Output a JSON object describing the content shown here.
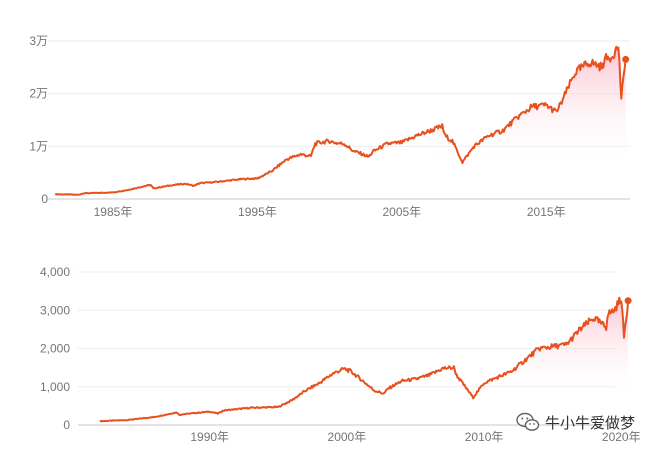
{
  "colors": {
    "line": "#e8501e",
    "fill_top": "#f7a4b8",
    "grid": "#eeeeee",
    "tick_text": "#757575"
  },
  "chart_data": [
    {
      "type": "area",
      "title": "",
      "xlabel": "",
      "ylabel": "",
      "x_ticks": [
        "1985年",
        "1995年",
        "2005年",
        "2015年"
      ],
      "x_tick_values": [
        1985,
        1995,
        2005,
        2015
      ],
      "y_ticks": [
        "0",
        "1万",
        "2万",
        "3万"
      ],
      "y_tick_values": [
        0,
        10000,
        20000,
        30000
      ],
      "ylim": [
        0,
        30000
      ],
      "xlim": [
        1980.5,
        2020.8
      ],
      "grid": true,
      "series": [
        {
          "x": [
            1981,
            1982,
            1982.6,
            1983,
            1984,
            1985,
            1986,
            1987.6,
            1987.8,
            1988,
            1989,
            1990,
            1990.6,
            1991,
            1992,
            1993,
            1994,
            1995,
            1996,
            1997,
            1998,
            1998.7,
            1999,
            1999.5,
            2000,
            2000.5,
            2001,
            2001.7,
            2002,
            2002.7,
            2003,
            2004,
            2005,
            2006,
            2007,
            2007.8,
            2008,
            2008.5,
            2009.2,
            2010,
            2011,
            2012,
            2013,
            2014,
            2015,
            2015.7,
            2016,
            2017,
            2018,
            2018.9,
            2019,
            2019.5,
            2020,
            2020.2,
            2020.5
          ],
          "y": [
            900,
            850,
            800,
            1100,
            1150,
            1250,
            1700,
            2700,
            2000,
            2100,
            2600,
            2900,
            2500,
            3000,
            3200,
            3500,
            3800,
            3900,
            5300,
            7500,
            8500,
            8100,
            10500,
            10800,
            11000,
            10600,
            10500,
            9000,
            8800,
            8000,
            9000,
            10500,
            10700,
            12000,
            13000,
            13800,
            12000,
            11000,
            7000,
            10000,
            12000,
            13000,
            15500,
            17500,
            17800,
            16500,
            18000,
            24000,
            26000,
            25000,
            26500,
            27000,
            29000,
            19000,
            26500
          ]
        }
      ]
    },
    {
      "type": "area",
      "title": "",
      "xlabel": "",
      "ylabel": "",
      "x_ticks": [
        "1990年",
        "2000年",
        "2010年",
        "2020年"
      ],
      "x_tick_values": [
        1990,
        2000,
        2010,
        2020
      ],
      "y_ticks": [
        "0",
        "1,000",
        "2,000",
        "3,000",
        "4,000"
      ],
      "y_tick_values": [
        0,
        1000,
        2000,
        3000,
        4000
      ],
      "ylim": [
        0,
        4000
      ],
      "xlim": [
        1980.4,
        2020.2
      ],
      "grid": true,
      "series": [
        {
          "x": [
            1982,
            1984,
            1986,
            1987.6,
            1987.8,
            1988,
            1990,
            1990.6,
            1991,
            1993,
            1995,
            1996,
            1997,
            1998,
            1999,
            1999.8,
            2000.3,
            2001,
            2002,
            2002.7,
            2003,
            2004,
            2005,
            2006,
            2007,
            2007.8,
            2008,
            2009.2,
            2010,
            2011,
            2012,
            2013,
            2014,
            2015,
            2016,
            2017,
            2018,
            2018.9,
            2019,
            2019.5,
            2020,
            2020.2,
            2020.5
          ],
          "y": [
            100,
            130,
            210,
            330,
            260,
            280,
            350,
            300,
            380,
            450,
            470,
            650,
            900,
            1100,
            1350,
            1470,
            1400,
            1200,
            900,
            820,
            950,
            1150,
            1200,
            1300,
            1480,
            1500,
            1300,
            720,
            1100,
            1250,
            1400,
            1700,
            2000,
            2050,
            2100,
            2500,
            2800,
            2550,
            2900,
            3000,
            3330,
            2300,
            3250
          ]
        }
      ]
    }
  ],
  "watermark": {
    "text": "牛小牛爱做梦",
    "icon": "wechat-icon"
  }
}
